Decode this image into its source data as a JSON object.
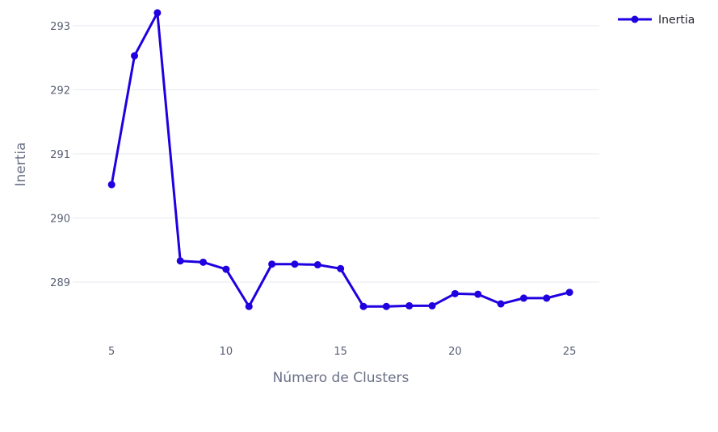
{
  "chart_data": {
    "type": "line",
    "xlabel": "Número de Clusters",
    "ylabel": "Inertia",
    "x": [
      5,
      6,
      7,
      8,
      9,
      10,
      11,
      12,
      13,
      14,
      15,
      16,
      17,
      18,
      19,
      20,
      21,
      22,
      23,
      24,
      25
    ],
    "series": [
      {
        "name": "Inertia",
        "color": "#1f00e0",
        "marker": "circle",
        "values": [
          290.52,
          292.53,
          293.2,
          289.33,
          289.31,
          289.2,
          288.62,
          289.28,
          289.28,
          289.27,
          289.21,
          288.62,
          288.62,
          288.63,
          288.63,
          288.82,
          288.81,
          288.66,
          288.75,
          288.75,
          288.84
        ]
      }
    ],
    "xticks": [
      5,
      10,
      15,
      20,
      25
    ],
    "yticks": [
      289,
      290,
      291,
      292,
      293
    ],
    "xlim": [
      3.3,
      26.3
    ],
    "ylim": [
      288.12,
      293.4
    ],
    "grid": "horizontal",
    "legend_position": "top-right"
  }
}
